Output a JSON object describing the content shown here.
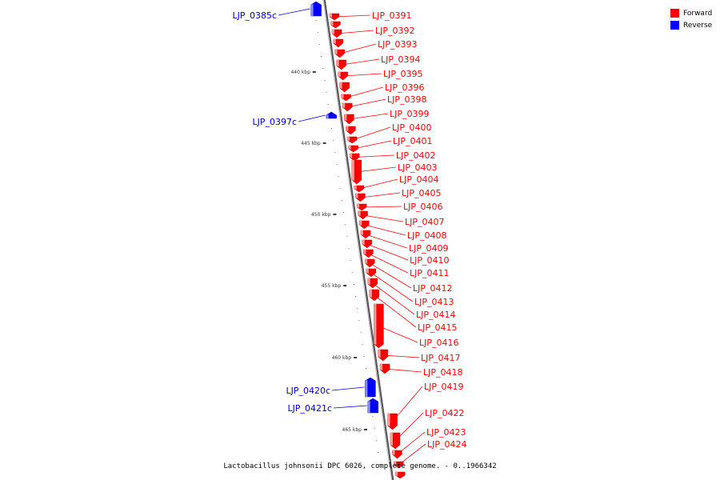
{
  "legend": {
    "forward_label": "Forward",
    "reverse_label": "Reverse",
    "forward_color": "#ff0000",
    "reverse_color": "#0000ff"
  },
  "caption": "Lactobacillus johnsonii DPC 6026, complete genome. - 0..1966342",
  "ticks": [
    "440 kbp",
    "445 kbp",
    "450 kbp",
    "455 kbp",
    "460 kbp",
    "465 kbp"
  ],
  "forward_genes": [
    "LJP_0391",
    "LJP_0392",
    "LJP_0393",
    "LJP_0394",
    "LJP_0395",
    "LJP_0396",
    "LJP_0398",
    "LJP_0399",
    "LJP_0400",
    "LJP_0401",
    "LJP_0402",
    "LJP_0403",
    "LJP_0404",
    "LJP_0405",
    "LJP_0406",
    "LJP_0407",
    "LJP_0408",
    "LJP_0409",
    "LJP_0410",
    "LJP_0411",
    "LJP_0412",
    "LJP_0413",
    "LJP_0414",
    "LJP_0415",
    "LJP_0416",
    "LJP_0417",
    "LJP_0418",
    "LJP_0419",
    "LJP_0422",
    "LJP_0423",
    "LJP_0424"
  ],
  "reverse_genes": [
    "LJP_0385c",
    "LJP_0397c",
    "LJP_0420c",
    "LJP_0421c"
  ]
}
